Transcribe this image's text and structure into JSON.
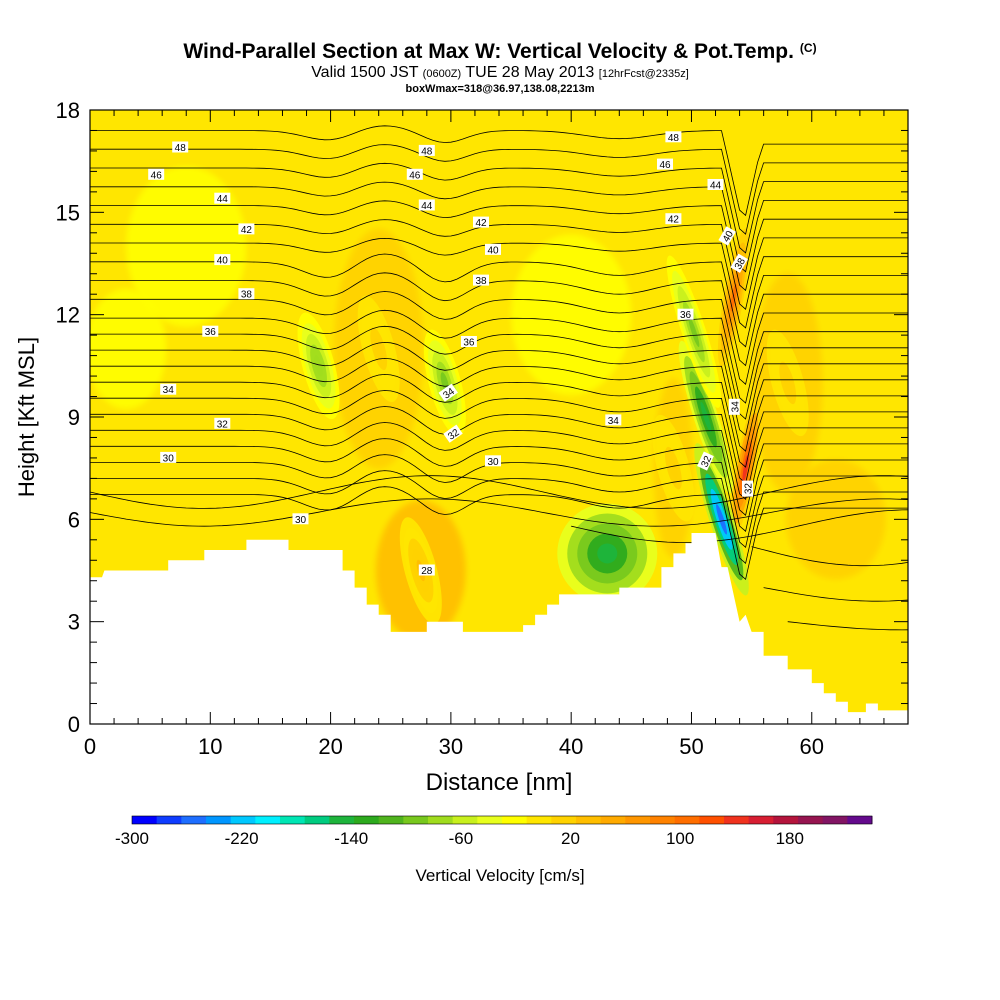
{
  "header": {
    "title": "Wind-Parallel Section at Max W: Vertical Velocity & Pot.Temp.",
    "copyright": "(C)",
    "valid_prefix": "Valid 1500 JST",
    "valid_utc": "(0600Z)",
    "valid_date": "TUE 28 May 2013",
    "forecast_note": "[12hrFcst@2335z]",
    "box_note": "boxWmax=318@36.97,138.08,2213m"
  },
  "chart_data": {
    "type": "cross-section contour",
    "xlabel": "Distance [nm]",
    "ylabel": "Height [Kft MSL]",
    "xlim": [
      0,
      68
    ],
    "ylim": [
      0,
      18
    ],
    "x_ticks": [
      "0",
      "10",
      "20",
      "30",
      "40",
      "50",
      "60"
    ],
    "x_tick_values": [
      0,
      10,
      20,
      30,
      40,
      50,
      60
    ],
    "y_ticks": [
      "0",
      "3",
      "6",
      "9",
      "12",
      "15",
      "18"
    ],
    "y_tick_values": [
      0,
      3,
      6,
      9,
      12,
      15,
      18
    ],
    "terrain_profile": {
      "x": [
        0,
        1,
        1.2,
        6.5,
        6.5,
        9.5,
        9.5,
        13,
        13,
        16.5,
        16.5,
        21,
        21,
        22,
        22,
        23,
        23,
        24,
        24,
        25,
        25,
        28,
        28,
        31,
        31,
        36,
        36,
        37,
        37,
        38,
        38,
        39,
        39,
        44,
        44,
        47.5,
        47.5,
        48.5,
        48.5,
        49.5,
        49.5,
        50,
        50,
        52,
        52.5,
        53,
        54,
        54.5,
        55,
        56,
        56,
        58,
        58,
        60,
        60,
        61,
        61,
        62,
        62,
        63,
        63,
        64.5,
        64.5,
        65.5,
        65.5,
        68
      ],
      "y": [
        4.3,
        4.3,
        4.5,
        4.5,
        4.8,
        4.8,
        5.1,
        5.1,
        5.4,
        5.4,
        5.1,
        5.1,
        4.5,
        4.5,
        4.0,
        4.0,
        3.5,
        3.5,
        3.2,
        3.2,
        2.7,
        2.7,
        3.0,
        3.0,
        2.7,
        2.7,
        2.9,
        2.9,
        3.2,
        3.2,
        3.5,
        3.5,
        3.8,
        3.8,
        4.0,
        4.0,
        4.6,
        4.6,
        5.0,
        5.0,
        5.3,
        5.3,
        5.6,
        5.6,
        4.6,
        4.6,
        3.0,
        3.2,
        2.7,
        2.7,
        2.0,
        2.0,
        1.6,
        1.6,
        1.2,
        1.2,
        0.9,
        0.9,
        0.65,
        0.65,
        0.35,
        0.35,
        0.6,
        0.6,
        0.4,
        0.4
      ]
    },
    "velocity_features": [
      {
        "name": "updraft core",
        "x": 54.5,
        "y": 7.5,
        "value": 180
      },
      {
        "name": "updraft upper",
        "x": 53.5,
        "y": 12.5,
        "value": 140
      },
      {
        "name": "downdraft strong",
        "x": 52.5,
        "y": 6.0,
        "value": -260
      },
      {
        "name": "downdraft mid",
        "x": 51.2,
        "y": 9.0,
        "value": -140
      },
      {
        "name": "downdraft upper",
        "x": 50.2,
        "y": 11.5,
        "value": -80
      },
      {
        "name": "sink basin",
        "x": 43,
        "y": 5.0,
        "value": -140
      },
      {
        "name": "sink 30nm",
        "x": 29.5,
        "y": 10.0,
        "value": -70
      },
      {
        "name": "sink 19nm",
        "x": 19,
        "y": 10.5,
        "value": -60
      },
      {
        "name": "lift 24nm",
        "x": 24,
        "y": 11.0,
        "value": 50
      },
      {
        "name": "lift 27nm",
        "x": 27.5,
        "y": 4.5,
        "value": 60
      },
      {
        "name": "lift 58nm",
        "x": 58,
        "y": 10.0,
        "value": 50
      },
      {
        "name": "lift 48nm",
        "x": 48.5,
        "y": 7.5,
        "value": 50
      }
    ],
    "theta_contours": [
      {
        "value": 28,
        "label": "28",
        "label_x": 28,
        "label_y": 4.5
      },
      {
        "value": 30,
        "label": "30",
        "label_x": 6.5,
        "label_y": 7.8
      },
      {
        "value": 32,
        "label": "32",
        "label_x": 11,
        "label_y": 8.8
      },
      {
        "value": 34,
        "label": "34",
        "label_x": 6.5,
        "label_y": 9.8
      },
      {
        "value": 36,
        "label": "36",
        "label_x": 10,
        "label_y": 11.5
      },
      {
        "value": 38,
        "label": "38",
        "label_x": 13,
        "label_y": 12.6
      },
      {
        "value": 40,
        "label": "40",
        "label_x": 11,
        "label_y": 13.6
      },
      {
        "value": 42,
        "label": "42",
        "label_x": 13,
        "label_y": 14.5
      },
      {
        "value": 44,
        "label": "44",
        "label_x": 11,
        "label_y": 15.4
      },
      {
        "value": 46,
        "label": "46",
        "label_x": 5.5,
        "label_y": 16.1
      },
      {
        "value": 48,
        "label": "48",
        "label_x": 7.5,
        "label_y": 16.9
      }
    ],
    "contour_labels": [
      {
        "text": "48",
        "x": 7.5,
        "y": 16.9,
        "rot": 0
      },
      {
        "text": "46",
        "x": 5.5,
        "y": 16.1,
        "rot": 0
      },
      {
        "text": "44",
        "x": 11,
        "y": 15.4,
        "rot": 0
      },
      {
        "text": "42",
        "x": 13,
        "y": 14.5,
        "rot": 0
      },
      {
        "text": "40",
        "x": 11,
        "y": 13.6,
        "rot": 0
      },
      {
        "text": "38",
        "x": 13,
        "y": 12.6,
        "rot": 0
      },
      {
        "text": "36",
        "x": 10,
        "y": 11.5,
        "rot": 0
      },
      {
        "text": "34",
        "x": 6.5,
        "y": 9.8,
        "rot": 0
      },
      {
        "text": "32",
        "x": 11,
        "y": 8.8,
        "rot": 0
      },
      {
        "text": "30",
        "x": 6.5,
        "y": 7.8,
        "rot": 0
      },
      {
        "text": "48",
        "x": 28,
        "y": 16.8,
        "rot": 0
      },
      {
        "text": "46",
        "x": 27,
        "y": 16.1,
        "rot": 0
      },
      {
        "text": "44",
        "x": 28,
        "y": 15.2,
        "rot": 0
      },
      {
        "text": "42",
        "x": 32.5,
        "y": 14.7,
        "rot": 0
      },
      {
        "text": "40",
        "x": 33.5,
        "y": 13.9,
        "rot": 0
      },
      {
        "text": "38",
        "x": 32.5,
        "y": 13.0,
        "rot": 0
      },
      {
        "text": "36",
        "x": 31.5,
        "y": 11.2,
        "rot": 0
      },
      {
        "text": "34",
        "x": 29.8,
        "y": 9.7,
        "rot": -35
      },
      {
        "text": "32",
        "x": 30.2,
        "y": 8.5,
        "rot": -35
      },
      {
        "text": "30",
        "x": 33.5,
        "y": 7.7,
        "rot": 0
      },
      {
        "text": "30",
        "x": 17.5,
        "y": 6.0,
        "rot": 0
      },
      {
        "text": "28",
        "x": 28,
        "y": 4.5,
        "rot": 0
      },
      {
        "text": "34",
        "x": 43.5,
        "y": 8.9,
        "rot": 0
      },
      {
        "text": "48",
        "x": 48.5,
        "y": 17.2,
        "rot": 0
      },
      {
        "text": "46",
        "x": 47.8,
        "y": 16.4,
        "rot": 0
      },
      {
        "text": "44",
        "x": 52,
        "y": 15.8,
        "rot": 0
      },
      {
        "text": "42",
        "x": 48.5,
        "y": 14.8,
        "rot": 0
      },
      {
        "text": "40",
        "x": 53,
        "y": 14.3,
        "rot": -60
      },
      {
        "text": "38",
        "x": 54,
        "y": 13.5,
        "rot": -60
      },
      {
        "text": "36",
        "x": 49.5,
        "y": 12.0,
        "rot": 0
      },
      {
        "text": "34",
        "x": 53.6,
        "y": 9.3,
        "rot": -90
      },
      {
        "text": "32",
        "x": 51.2,
        "y": 7.7,
        "rot": -65
      },
      {
        "text": "32",
        "x": 54.7,
        "y": 6.9,
        "rot": -90
      }
    ],
    "colorbar": {
      "label": "Vertical Velocity [cm/s]",
      "ticks": [
        "-300",
        "-220",
        "-140",
        "-60",
        "20",
        "100",
        "180"
      ],
      "tick_values": [
        -300,
        -220,
        -140,
        -60,
        20,
        100,
        180
      ],
      "range": [
        -300,
        240
      ],
      "step": 20,
      "colors": [
        "#0000ff",
        "#0f3cff",
        "#1e6eff",
        "#0096ff",
        "#00c8ff",
        "#00f0ff",
        "#00e6b4",
        "#00cc80",
        "#1eb43c",
        "#2daa1e",
        "#50b41e",
        "#78c81e",
        "#a0dc1e",
        "#c8f01e",
        "#e8ff1e",
        "#ffff00",
        "#ffe600",
        "#ffd200",
        "#ffbe00",
        "#ffaa00",
        "#ff9600",
        "#ff8200",
        "#ff6e00",
        "#ff5000",
        "#f0321e",
        "#d71e32",
        "#b4143c",
        "#961450",
        "#821464",
        "#640a8c"
      ]
    }
  }
}
